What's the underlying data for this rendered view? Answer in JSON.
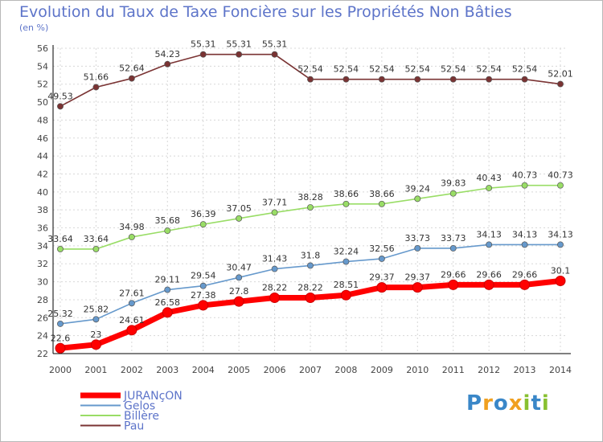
{
  "chart_data": {
    "type": "line",
    "title": "Evolution du Taux de Taxe Foncière sur les Propriétés Non Bâties",
    "ylabel": "(en %)",
    "xlabel": "",
    "x": [
      "2000",
      "2001",
      "2002",
      "2003",
      "2004",
      "2005",
      "2006",
      "2007",
      "2008",
      "2009",
      "2010",
      "2011",
      "2012",
      "2013",
      "2014"
    ],
    "ylim": [
      22,
      56
    ],
    "yticks": [
      "22",
      "24",
      "26",
      "28",
      "30",
      "32",
      "34",
      "36",
      "38",
      "40",
      "42",
      "44",
      "46",
      "48",
      "50",
      "52",
      "54",
      "56"
    ],
    "grid": true,
    "legend": "bottom-left",
    "series": [
      {
        "name": "JURANçON",
        "color": "#ff0000",
        "labels": [
          "22.6",
          "23",
          "24.61",
          "26.58",
          "27.38",
          "27.8",
          "28.22",
          "28.22",
          "28.51",
          "29.37",
          "29.37",
          "29.66",
          "29.66",
          "29.66",
          "30.1"
        ],
        "values": [
          22.6,
          23,
          24.61,
          26.58,
          27.38,
          27.8,
          28.22,
          28.22,
          28.51,
          29.37,
          29.37,
          29.66,
          29.66,
          29.66,
          30.1
        ]
      },
      {
        "name": "Gelos",
        "color": "#6699cc",
        "labels": [
          "25.32",
          "25.82",
          "27.61",
          "29.11",
          "29.54",
          "30.47",
          "31.43",
          "31.8",
          "32.24",
          "32.56",
          "33.73",
          "33.73",
          "34.13",
          "34.13",
          "34.13"
        ],
        "values": [
          25.32,
          25.82,
          27.61,
          29.11,
          29.54,
          30.47,
          31.43,
          31.8,
          32.24,
          32.56,
          33.73,
          33.73,
          34.13,
          34.13,
          34.13
        ]
      },
      {
        "name": "Billère",
        "color": "#99dd66",
        "labels": [
          "33.64",
          "33.64",
          "34.98",
          "35.68",
          "36.39",
          "37.05",
          "37.71",
          "38.28",
          "38.66",
          "38.66",
          "39.24",
          "39.83",
          "40.43",
          "40.73",
          "40.73"
        ],
        "values": [
          33.64,
          33.64,
          34.98,
          35.68,
          36.39,
          37.05,
          37.71,
          38.28,
          38.66,
          38.66,
          39.24,
          39.83,
          40.43,
          40.73,
          40.73
        ]
      },
      {
        "name": "Pau",
        "color": "#7a3333",
        "labels": [
          "49.53",
          "51.66",
          "52.64",
          "54.23",
          "55.31",
          "55.31",
          "55.31",
          "52.54",
          "52.54",
          "52.54",
          "52.54",
          "52.54",
          "52.54",
          "52.54",
          "52.01"
        ],
        "values": [
          49.53,
          51.66,
          52.64,
          54.23,
          55.31,
          55.31,
          55.31,
          52.54,
          52.54,
          52.54,
          52.54,
          52.54,
          52.54,
          52.54,
          52.01
        ]
      }
    ]
  },
  "logo": {
    "letters": [
      "P",
      "r",
      "o",
      "x",
      "i",
      "t",
      "i"
    ],
    "colors": [
      "#3a87c8",
      "#f0a020",
      "#3a87c8",
      "#f0a020",
      "#88c030",
      "#3a87c8",
      "#88c030"
    ]
  }
}
